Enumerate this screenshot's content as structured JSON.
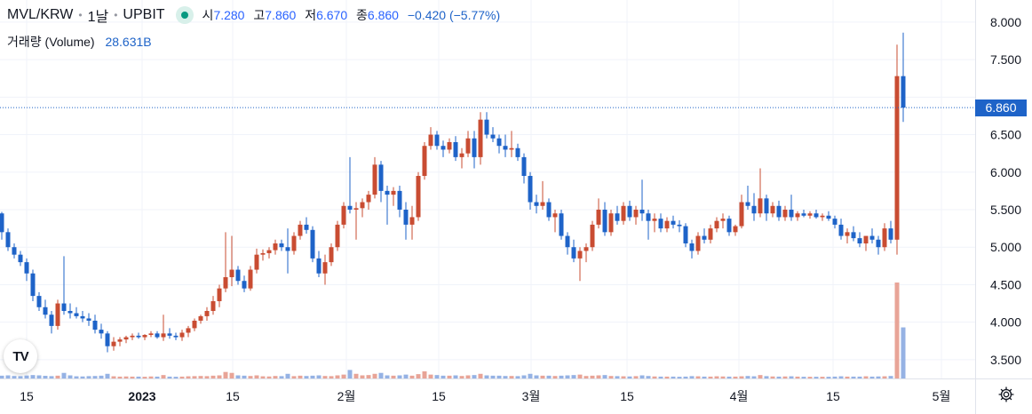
{
  "header": {
    "symbol": "MVL/KRW",
    "interval": "1날",
    "exchange": "UPBIT",
    "open_label": "시",
    "open": "7.280",
    "high_label": "고",
    "high": "7.860",
    "low_label": "저",
    "low": "6.670",
    "close_label": "종",
    "close": "6.860",
    "change": "−0.420 (−5.77%)"
  },
  "volume": {
    "label": "거래량 (Volume)",
    "value": "28.631B"
  },
  "last_price": "6.860",
  "logo_text": "TV",
  "icons": {
    "status": "market-open-icon",
    "logo": "tradingview-logo-icon",
    "settings": "gear-icon"
  },
  "colors": {
    "up": "#c94c32",
    "down": "#1e63c8",
    "up_vol": "#e8a497",
    "down_vol": "#95b2e4",
    "grid": "#f0f3fa"
  },
  "chart_data": {
    "type": "candlestick",
    "title": "MVL/KRW · 1날 · UPBIT",
    "x_tick_labels": [
      "15",
      "2023",
      "15",
      "2월",
      "15",
      "3월",
      "15",
      "4월",
      "15",
      "5월"
    ],
    "y_tick_labels": [
      "3.500",
      "4.000",
      "4.500",
      "5.000",
      "5.500",
      "6.000",
      "6.500",
      "7.000",
      "7.500",
      "8.000"
    ],
    "ylim": [
      3.25,
      8.2
    ],
    "grid": true,
    "last_price": 6.86,
    "candles": [
      [
        5.45,
        5.47,
        5.1,
        5.2
      ],
      [
        5.2,
        5.25,
        4.95,
        5.0
      ],
      [
        5.0,
        5.05,
        4.85,
        4.9
      ],
      [
        4.9,
        4.95,
        4.75,
        4.8
      ],
      [
        4.8,
        4.85,
        4.55,
        4.65
      ],
      [
        4.65,
        4.7,
        4.28,
        4.35
      ],
      [
        4.35,
        4.4,
        4.15,
        4.2
      ],
      [
        4.2,
        4.3,
        4.05,
        4.1
      ],
      [
        4.1,
        4.15,
        3.85,
        3.95
      ],
      [
        3.95,
        4.3,
        3.9,
        4.25
      ],
      [
        4.25,
        4.88,
        4.1,
        4.15
      ],
      [
        4.15,
        4.25,
        4.05,
        4.12
      ],
      [
        4.12,
        4.2,
        4.05,
        4.08
      ],
      [
        4.08,
        4.15,
        4.0,
        4.05
      ],
      [
        4.05,
        4.12,
        3.95,
        4.02
      ],
      [
        4.02,
        4.1,
        3.85,
        3.9
      ],
      [
        3.9,
        3.98,
        3.78,
        3.85
      ],
      [
        3.85,
        3.88,
        3.6,
        3.68
      ],
      [
        3.68,
        3.8,
        3.62,
        3.74
      ],
      [
        3.74,
        3.8,
        3.68,
        3.77
      ],
      [
        3.77,
        3.82,
        3.72,
        3.8
      ],
      [
        3.8,
        3.85,
        3.76,
        3.82
      ],
      [
        3.82,
        3.86,
        3.78,
        3.8
      ],
      [
        3.8,
        3.84,
        3.76,
        3.83
      ],
      [
        3.83,
        3.88,
        3.8,
        3.85
      ],
      [
        3.85,
        3.88,
        3.78,
        3.8
      ],
      [
        3.8,
        4.1,
        3.75,
        3.85
      ],
      [
        3.85,
        3.92,
        3.78,
        3.82
      ],
      [
        3.82,
        3.86,
        3.76,
        3.8
      ],
      [
        3.8,
        3.9,
        3.75,
        3.86
      ],
      [
        3.86,
        3.95,
        3.8,
        3.92
      ],
      [
        3.92,
        4.05,
        3.88,
        4.02
      ],
      [
        4.02,
        4.1,
        3.98,
        4.08
      ],
      [
        4.08,
        4.2,
        4.02,
        4.15
      ],
      [
        4.15,
        4.35,
        4.1,
        4.28
      ],
      [
        4.28,
        4.5,
        4.2,
        4.45
      ],
      [
        4.45,
        5.2,
        4.4,
        4.6
      ],
      [
        4.6,
        5.15,
        4.48,
        4.7
      ],
      [
        4.7,
        4.75,
        4.5,
        4.55
      ],
      [
        4.55,
        4.62,
        4.4,
        4.45
      ],
      [
        4.45,
        4.75,
        4.42,
        4.7
      ],
      [
        4.7,
        4.98,
        4.65,
        4.9
      ],
      [
        4.9,
        4.97,
        4.82,
        4.92
      ],
      [
        4.92,
        5.0,
        4.85,
        4.96
      ],
      [
        4.96,
        5.1,
        4.9,
        5.05
      ],
      [
        5.05,
        5.1,
        4.95,
        5.0
      ],
      [
        5.0,
        5.25,
        4.65,
        4.95
      ],
      [
        4.95,
        5.2,
        4.9,
        5.15
      ],
      [
        5.15,
        5.35,
        5.1,
        5.3
      ],
      [
        5.3,
        5.4,
        5.18,
        5.23
      ],
      [
        5.23,
        5.28,
        4.8,
        4.85
      ],
      [
        4.85,
        4.95,
        4.6,
        4.65
      ],
      [
        4.65,
        4.9,
        4.5,
        4.8
      ],
      [
        4.8,
        5.05,
        4.75,
        5.0
      ],
      [
        5.0,
        5.35,
        4.95,
        5.3
      ],
      [
        5.3,
        5.6,
        5.25,
        5.55
      ],
      [
        5.55,
        6.2,
        5.45,
        5.5
      ],
      [
        5.5,
        5.6,
        5.1,
        5.52
      ],
      [
        5.52,
        5.65,
        5.4,
        5.6
      ],
      [
        5.6,
        5.75,
        5.5,
        5.7
      ],
      [
        5.7,
        6.2,
        5.65,
        6.1
      ],
      [
        6.1,
        6.15,
        5.6,
        5.75
      ],
      [
        5.75,
        5.82,
        5.3,
        5.7
      ],
      [
        5.7,
        5.8,
        5.55,
        5.75
      ],
      [
        5.75,
        5.82,
        5.4,
        5.5
      ],
      [
        5.5,
        5.6,
        5.1,
        5.3
      ],
      [
        5.3,
        5.55,
        5.1,
        5.4
      ],
      [
        5.4,
        6.0,
        5.35,
        5.95
      ],
      [
        5.95,
        6.4,
        5.9,
        6.35
      ],
      [
        6.35,
        6.6,
        6.3,
        6.5
      ],
      [
        6.5,
        6.55,
        6.3,
        6.35
      ],
      [
        6.35,
        6.42,
        6.2,
        6.3
      ],
      [
        6.3,
        6.45,
        6.25,
        6.4
      ],
      [
        6.4,
        6.48,
        6.15,
        6.2
      ],
      [
        6.2,
        6.32,
        6.05,
        6.25
      ],
      [
        6.25,
        6.55,
        6.2,
        6.45
      ],
      [
        6.45,
        6.55,
        6.05,
        6.2
      ],
      [
        6.2,
        6.8,
        6.1,
        6.7
      ],
      [
        6.7,
        6.8,
        6.45,
        6.5
      ],
      [
        6.5,
        6.6,
        6.4,
        6.45
      ],
      [
        6.45,
        6.5,
        6.25,
        6.35
      ],
      [
        6.35,
        6.5,
        6.2,
        6.3
      ],
      [
        6.3,
        6.55,
        6.2,
        6.32
      ],
      [
        6.32,
        6.38,
        6.15,
        6.2
      ],
      [
        6.2,
        6.25,
        5.85,
        5.95
      ],
      [
        5.95,
        6.0,
        5.5,
        5.6
      ],
      [
        5.6,
        5.7,
        5.45,
        5.55
      ],
      [
        5.55,
        5.88,
        5.5,
        5.6
      ],
      [
        5.6,
        5.65,
        5.35,
        5.4
      ],
      [
        5.4,
        5.5,
        5.2,
        5.45
      ],
      [
        5.45,
        5.5,
        5.1,
        5.15
      ],
      [
        5.15,
        5.2,
        4.9,
        5.0
      ],
      [
        5.0,
        5.1,
        4.8,
        4.85
      ],
      [
        4.85,
        5.0,
        4.55,
        4.95
      ],
      [
        4.95,
        5.05,
        4.8,
        5.0
      ],
      [
        5.0,
        5.35,
        4.95,
        5.3
      ],
      [
        5.3,
        5.65,
        5.25,
        5.5
      ],
      [
        5.5,
        5.6,
        5.15,
        5.2
      ],
      [
        5.2,
        5.5,
        5.15,
        5.45
      ],
      [
        5.45,
        5.55,
        5.3,
        5.35
      ],
      [
        5.35,
        5.6,
        5.3,
        5.55
      ],
      [
        5.55,
        5.62,
        5.35,
        5.4
      ],
      [
        5.4,
        5.55,
        5.3,
        5.5
      ],
      [
        5.5,
        5.9,
        5.35,
        5.45
      ],
      [
        5.45,
        5.5,
        5.1,
        5.35
      ],
      [
        5.35,
        5.45,
        5.2,
        5.38
      ],
      [
        5.38,
        5.45,
        5.2,
        5.25
      ],
      [
        5.25,
        5.4,
        5.2,
        5.35
      ],
      [
        5.35,
        5.42,
        5.25,
        5.3
      ],
      [
        5.3,
        5.36,
        5.2,
        5.28
      ],
      [
        5.28,
        5.32,
        5.0,
        5.05
      ],
      [
        5.05,
        5.1,
        4.85,
        4.95
      ],
      [
        4.95,
        5.2,
        4.9,
        5.15
      ],
      [
        5.15,
        5.25,
        5.05,
        5.1
      ],
      [
        5.1,
        5.3,
        5.05,
        5.25
      ],
      [
        5.25,
        5.4,
        5.2,
        5.35
      ],
      [
        5.35,
        5.45,
        5.25,
        5.38
      ],
      [
        5.38,
        5.42,
        5.15,
        5.2
      ],
      [
        5.2,
        5.3,
        5.15,
        5.28
      ],
      [
        5.28,
        5.7,
        5.25,
        5.6
      ],
      [
        5.6,
        5.82,
        5.5,
        5.55
      ],
      [
        5.55,
        5.72,
        5.35,
        5.45
      ],
      [
        5.45,
        6.05,
        5.4,
        5.65
      ],
      [
        5.65,
        5.7,
        5.35,
        5.45
      ],
      [
        5.45,
        5.6,
        5.4,
        5.55
      ],
      [
        5.55,
        5.62,
        5.35,
        5.4
      ],
      [
        5.4,
        5.55,
        5.35,
        5.5
      ],
      [
        5.5,
        5.7,
        5.35,
        5.4
      ],
      [
        5.4,
        5.48,
        5.35,
        5.45
      ],
      [
        5.45,
        5.5,
        5.4,
        5.42
      ],
      [
        5.42,
        5.48,
        5.38,
        5.45
      ],
      [
        5.45,
        5.5,
        5.38,
        5.4
      ],
      [
        5.4,
        5.45,
        5.35,
        5.42
      ],
      [
        5.42,
        5.48,
        5.35,
        5.38
      ],
      [
        5.38,
        5.42,
        5.25,
        5.3
      ],
      [
        5.3,
        5.38,
        5.1,
        5.15
      ],
      [
        5.15,
        5.25,
        5.05,
        5.2
      ],
      [
        5.2,
        5.28,
        5.08,
        5.12
      ],
      [
        5.12,
        5.2,
        5.0,
        5.05
      ],
      [
        5.05,
        5.15,
        4.95,
        5.15
      ],
      [
        5.15,
        5.25,
        5.05,
        5.1
      ],
      [
        5.1,
        5.15,
        4.9,
        5.0
      ],
      [
        5.0,
        5.32,
        4.95,
        5.25
      ],
      [
        5.25,
        5.35,
        5.05,
        5.1
      ],
      [
        5.1,
        7.7,
        4.9,
        7.28
      ],
      [
        7.28,
        7.86,
        6.67,
        6.86
      ]
    ],
    "volume": [
      0.18,
      0.2,
      0.16,
      0.15,
      0.19,
      0.22,
      0.2,
      0.17,
      0.15,
      0.18,
      0.36,
      0.2,
      0.14,
      0.13,
      0.15,
      0.16,
      0.18,
      0.3,
      0.14,
      0.12,
      0.13,
      0.12,
      0.12,
      0.11,
      0.13,
      0.12,
      0.22,
      0.12,
      0.11,
      0.12,
      0.14,
      0.15,
      0.16,
      0.15,
      0.18,
      0.2,
      0.42,
      0.36,
      0.2,
      0.18,
      0.16,
      0.2,
      0.14,
      0.13,
      0.16,
      0.15,
      0.3,
      0.15,
      0.18,
      0.16,
      0.18,
      0.2,
      0.16,
      0.15,
      0.2,
      0.25,
      0.55,
      0.3,
      0.2,
      0.22,
      0.3,
      0.36,
      0.2,
      0.18,
      0.2,
      0.25,
      0.18,
      0.28,
      0.46,
      0.25,
      0.22,
      0.18,
      0.18,
      0.2,
      0.16,
      0.2,
      0.22,
      0.3,
      0.2,
      0.18,
      0.18,
      0.16,
      0.16,
      0.15,
      0.2,
      0.3,
      0.2,
      0.18,
      0.18,
      0.16,
      0.18,
      0.2,
      0.22,
      0.25,
      0.16,
      0.18,
      0.2,
      0.22,
      0.16,
      0.15,
      0.14,
      0.13,
      0.15,
      0.2,
      0.16,
      0.13,
      0.12,
      0.12,
      0.12,
      0.11,
      0.12,
      0.15,
      0.14,
      0.12,
      0.12,
      0.14,
      0.13,
      0.12,
      0.12,
      0.14,
      0.16,
      0.14,
      0.22,
      0.15,
      0.13,
      0.12,
      0.13,
      0.14,
      0.12,
      0.11,
      0.11,
      0.11,
      0.11,
      0.11,
      0.12,
      0.14,
      0.12,
      0.12,
      0.12,
      0.14,
      0.12,
      0.13,
      0.14,
      0.16,
      6.2,
      3.3
    ]
  }
}
